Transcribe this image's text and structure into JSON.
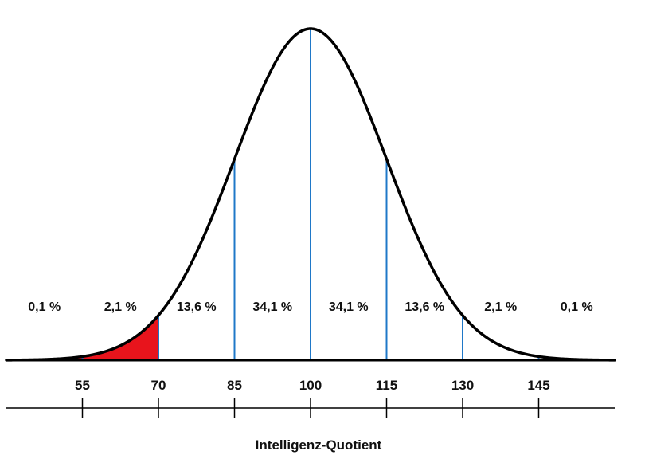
{
  "chart_data": {
    "type": "area",
    "title": "",
    "xlabel": "Intelligenz-Quotient",
    "ylabel": "",
    "distribution": {
      "kind": "normal",
      "mean": 100,
      "sd": 15
    },
    "xlim": [
      40,
      160
    ],
    "x_ticks": [
      55,
      70,
      85,
      100,
      115,
      130,
      145
    ],
    "x_tick_labels": [
      "55",
      "70",
      "85",
      "100",
      "115",
      "130",
      "145"
    ],
    "boundaries": [
      55,
      70,
      85,
      100,
      115,
      130,
      145
    ],
    "segments": [
      {
        "from": 40,
        "to": 55,
        "label": "0,1 %",
        "value": 0.1
      },
      {
        "from": 55,
        "to": 70,
        "label": "2,1 %",
        "value": 2.1
      },
      {
        "from": 70,
        "to": 85,
        "label": "13,6 %",
        "value": 13.6
      },
      {
        "from": 85,
        "to": 100,
        "label": "34,1 %",
        "value": 34.1
      },
      {
        "from": 100,
        "to": 115,
        "label": "34,1 %",
        "value": 34.1
      },
      {
        "from": 115,
        "to": 130,
        "label": "13,6 %",
        "value": 13.6
      },
      {
        "from": 130,
        "to": 145,
        "label": "2,1 %",
        "value": 2.1
      },
      {
        "from": 145,
        "to": 160,
        "label": "0,1 %",
        "value": 0.1
      }
    ],
    "highlight": {
      "from": 40,
      "to": 70,
      "color": "#e8141c"
    },
    "colors": {
      "curve": "#000000",
      "boundary": "#1f78c8",
      "axis": "#000000"
    },
    "grid": false,
    "legend": "none"
  }
}
